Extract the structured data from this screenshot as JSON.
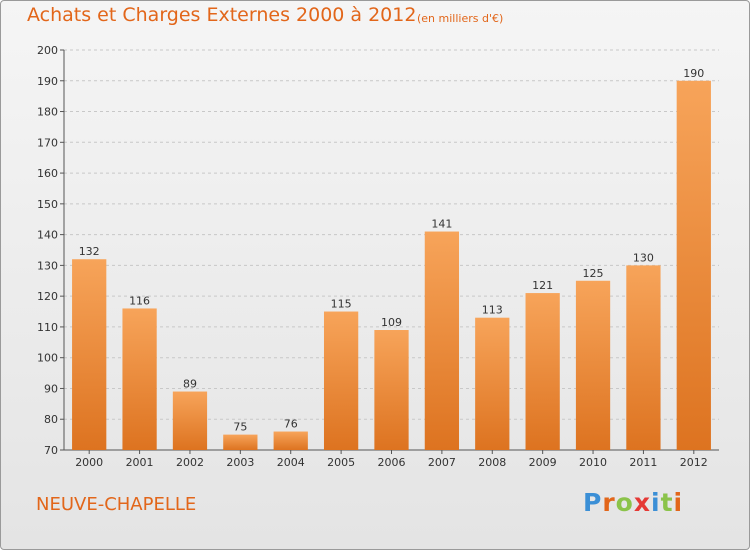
{
  "title": "Achats et Charges Externes 2000 à 2012",
  "subtitle": "(en milliers d'€)",
  "commune": "NEUVE-CHAPELLE",
  "logo": {
    "letters": [
      "P",
      "r",
      "o",
      "x",
      "i",
      "t",
      "i"
    ],
    "colors": [
      "#3b8fd6",
      "#e2661a",
      "#8bc34a",
      "#e53935",
      "#3b8fd6",
      "#8bc34a",
      "#e2661a"
    ]
  },
  "colors": {
    "bar_top": "#f7a45a",
    "bar_bottom": "#dd7320",
    "accent": "#e2661a"
  },
  "chart_data": {
    "type": "bar",
    "categories": [
      "2000",
      "2001",
      "2002",
      "2003",
      "2004",
      "2005",
      "2006",
      "2007",
      "2008",
      "2009",
      "2010",
      "2011",
      "2012"
    ],
    "values": [
      132,
      116,
      89,
      75,
      76,
      115,
      109,
      141,
      113,
      121,
      125,
      130,
      190
    ],
    "ylim": [
      70,
      200
    ],
    "yticks": [
      70,
      80,
      90,
      100,
      110,
      120,
      130,
      140,
      150,
      160,
      170,
      180,
      190,
      200
    ],
    "grid": true,
    "grid_style": "dashed"
  }
}
